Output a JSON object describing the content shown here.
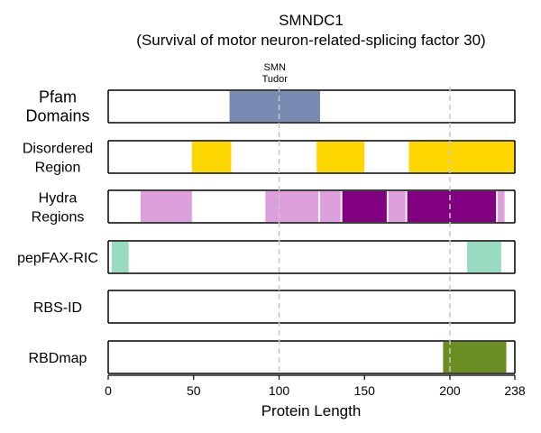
{
  "chart_data": {
    "type": "domain-track",
    "title": "SMNDC1",
    "subtitle": "(Survival of motor neuron-related-splicing factor 30)",
    "xlabel": "Protein Length",
    "xlim": [
      0,
      238
    ],
    "xticks": [
      0,
      50,
      100,
      150,
      200,
      238
    ],
    "gridlines": [
      100,
      200
    ],
    "tracks": [
      {
        "name": "Pfam Domains",
        "label_lines": [
          "Pfam",
          "Domains"
        ],
        "segments": [
          {
            "start": 71,
            "end": 124,
            "color": "#7A8BB3",
            "label_lines": [
              "SMN",
              "Tudor"
            ]
          }
        ]
      },
      {
        "name": "Disordered Region",
        "label_lines": [
          "Disordered",
          "Region"
        ],
        "segments": [
          {
            "start": 49,
            "end": 72,
            "color": "#FFD700"
          },
          {
            "start": 122,
            "end": 150,
            "color": "#FFD700"
          },
          {
            "start": 176,
            "end": 238,
            "color": "#FFD700"
          }
        ]
      },
      {
        "name": "Hydra Regions",
        "label_lines": [
          "Hydra",
          "Regions"
        ],
        "segments": [
          {
            "start": 19,
            "end": 49,
            "color": "#DDA0DD"
          },
          {
            "start": 92,
            "end": 123,
            "color": "#DDA0DD"
          },
          {
            "start": 124,
            "end": 136,
            "color": "#DDA0DD"
          },
          {
            "start": 137,
            "end": 163,
            "color": "#800080"
          },
          {
            "start": 164,
            "end": 174,
            "color": "#DDA0DD"
          },
          {
            "start": 175,
            "end": 227,
            "color": "#800080"
          },
          {
            "start": 228,
            "end": 232,
            "color": "#DDA0DD"
          }
        ]
      },
      {
        "name": "pepFAX-RIC",
        "label_lines": [
          "pepFAX-RIC"
        ],
        "segments": [
          {
            "start": 2,
            "end": 12,
            "color": "#98DBC0"
          },
          {
            "start": 210,
            "end": 230,
            "color": "#98DBC0"
          }
        ]
      },
      {
        "name": "RBS-ID",
        "label_lines": [
          "RBS-ID"
        ],
        "segments": []
      },
      {
        "name": "RBDmap",
        "label_lines": [
          "RBDmap"
        ],
        "segments": [
          {
            "start": 196,
            "end": 233,
            "color": "#6B8E23"
          }
        ]
      }
    ]
  }
}
